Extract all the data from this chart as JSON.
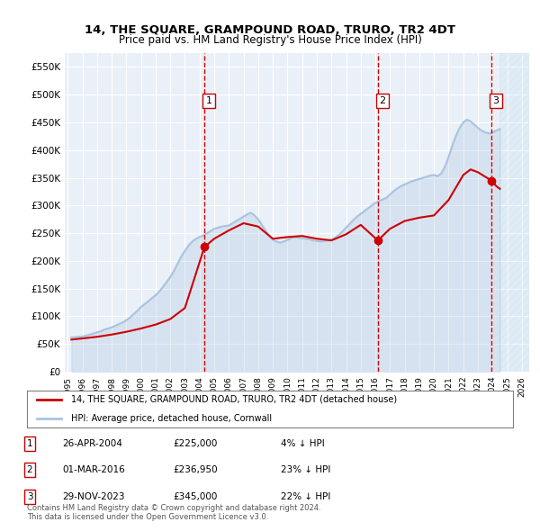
{
  "title": "14, THE SQUARE, GRAMPOUND ROAD, TRURO, TR2 4DT",
  "subtitle": "Price paid vs. HM Land Registry's House Price Index (HPI)",
  "ylim": [
    0,
    575000
  ],
  "yticks": [
    0,
    50000,
    100000,
    150000,
    200000,
    250000,
    300000,
    350000,
    400000,
    450000,
    500000,
    550000
  ],
  "ytick_labels": [
    "£0",
    "£50K",
    "£100K",
    "£150K",
    "£200K",
    "£250K",
    "£300K",
    "£350K",
    "£400K",
    "£450K",
    "£500K",
    "£550K"
  ],
  "x_start_year": 1995,
  "x_end_year": 2026,
  "hpi_color": "#aac4e0",
  "price_color": "#cc0000",
  "vline_color": "#cc0000",
  "bg_color": "#eaf0f8",
  "sale_dates": [
    "2004-04-26",
    "2016-03-01",
    "2023-11-29"
  ],
  "sale_prices": [
    225000,
    236950,
    345000
  ],
  "sale_labels": [
    "1",
    "2",
    "3"
  ],
  "legend_line1": "14, THE SQUARE, GRAMPOUND ROAD, TRURO, TR2 4DT (detached house)",
  "legend_line2": "HPI: Average price, detached house, Cornwall",
  "table_data": [
    [
      "1",
      "26-APR-2004",
      "£225,000",
      "4% ↓ HPI"
    ],
    [
      "2",
      "01-MAR-2016",
      "£236,950",
      "23% ↓ HPI"
    ],
    [
      "3",
      "29-NOV-2023",
      "£345,000",
      "22% ↓ HPI"
    ]
  ],
  "footnote": "Contains HM Land Registry data © Crown copyright and database right 2024.\nThis data is licensed under the Open Government Licence v3.0.",
  "hpi_data_x": [
    1995.25,
    1995.5,
    1995.75,
    1996.0,
    1996.25,
    1996.5,
    1996.75,
    1997.0,
    1997.25,
    1997.5,
    1997.75,
    1998.0,
    1998.25,
    1998.5,
    1998.75,
    1999.0,
    1999.25,
    1999.5,
    1999.75,
    2000.0,
    2000.25,
    2000.5,
    2000.75,
    2001.0,
    2001.25,
    2001.5,
    2001.75,
    2002.0,
    2002.25,
    2002.5,
    2002.75,
    2003.0,
    2003.25,
    2003.5,
    2003.75,
    2004.0,
    2004.25,
    2004.5,
    2004.75,
    2005.0,
    2005.25,
    2005.5,
    2005.75,
    2006.0,
    2006.25,
    2006.5,
    2006.75,
    2007.0,
    2007.25,
    2007.5,
    2007.75,
    2008.0,
    2008.25,
    2008.5,
    2008.75,
    2009.0,
    2009.25,
    2009.5,
    2009.75,
    2010.0,
    2010.25,
    2010.5,
    2010.75,
    2011.0,
    2011.25,
    2011.5,
    2011.75,
    2012.0,
    2012.25,
    2012.5,
    2012.75,
    2013.0,
    2013.25,
    2013.5,
    2013.75,
    2014.0,
    2014.25,
    2014.5,
    2014.75,
    2015.0,
    2015.25,
    2015.5,
    2015.75,
    2016.0,
    2016.25,
    2016.5,
    2016.75,
    2017.0,
    2017.25,
    2017.5,
    2017.75,
    2018.0,
    2018.25,
    2018.5,
    2018.75,
    2019.0,
    2019.25,
    2019.5,
    2019.75,
    2020.0,
    2020.25,
    2020.5,
    2020.75,
    2021.0,
    2021.25,
    2021.5,
    2021.75,
    2022.0,
    2022.25,
    2022.5,
    2022.75,
    2023.0,
    2023.25,
    2023.5,
    2023.75,
    2024.0,
    2024.25,
    2024.5
  ],
  "hpi_data_y": [
    62000,
    62500,
    63000,
    63500,
    65000,
    67000,
    69000,
    71000,
    73000,
    76000,
    78000,
    80000,
    83000,
    86000,
    89000,
    93000,
    98000,
    104000,
    110000,
    117000,
    122000,
    127000,
    133000,
    138000,
    145000,
    153000,
    162000,
    171000,
    182000,
    195000,
    208000,
    218000,
    228000,
    235000,
    240000,
    243000,
    246000,
    250000,
    254000,
    258000,
    260000,
    262000,
    263000,
    264000,
    268000,
    272000,
    276000,
    280000,
    284000,
    287000,
    282000,
    275000,
    265000,
    255000,
    245000,
    238000,
    235000,
    233000,
    235000,
    238000,
    241000,
    243000,
    242000,
    241000,
    240000,
    239000,
    237000,
    236000,
    235000,
    236000,
    237000,
    238000,
    242000,
    247000,
    253000,
    260000,
    267000,
    274000,
    280000,
    285000,
    290000,
    295000,
    300000,
    305000,
    308000,
    311000,
    314000,
    320000,
    326000,
    331000,
    335000,
    338000,
    341000,
    344000,
    346000,
    348000,
    350000,
    352000,
    354000,
    355000,
    353000,
    358000,
    370000,
    388000,
    408000,
    426000,
    440000,
    450000,
    455000,
    452000,
    446000,
    440000,
    435000,
    432000,
    430000,
    432000,
    435000,
    438000
  ],
  "price_line_x": [
    1995.25,
    1996.0,
    1997.0,
    1998.0,
    1999.0,
    2000.0,
    2001.0,
    2002.0,
    2003.0,
    2004.33,
    2005.0,
    2006.0,
    2007.0,
    2008.0,
    2009.0,
    2010.0,
    2011.0,
    2012.0,
    2013.0,
    2014.0,
    2015.0,
    2016.17,
    2017.0,
    2018.0,
    2019.0,
    2020.0,
    2021.0,
    2022.0,
    2022.5,
    2023.0,
    2023.92,
    2024.25,
    2024.5
  ],
  "price_line_y": [
    58000,
    60000,
    63000,
    67000,
    72000,
    78000,
    85000,
    95000,
    115000,
    225000,
    240000,
    255000,
    268000,
    262000,
    240000,
    243000,
    245000,
    240000,
    237000,
    248000,
    265000,
    236950,
    258000,
    272000,
    278000,
    282000,
    310000,
    355000,
    365000,
    360000,
    345000,
    335000,
    330000
  ]
}
